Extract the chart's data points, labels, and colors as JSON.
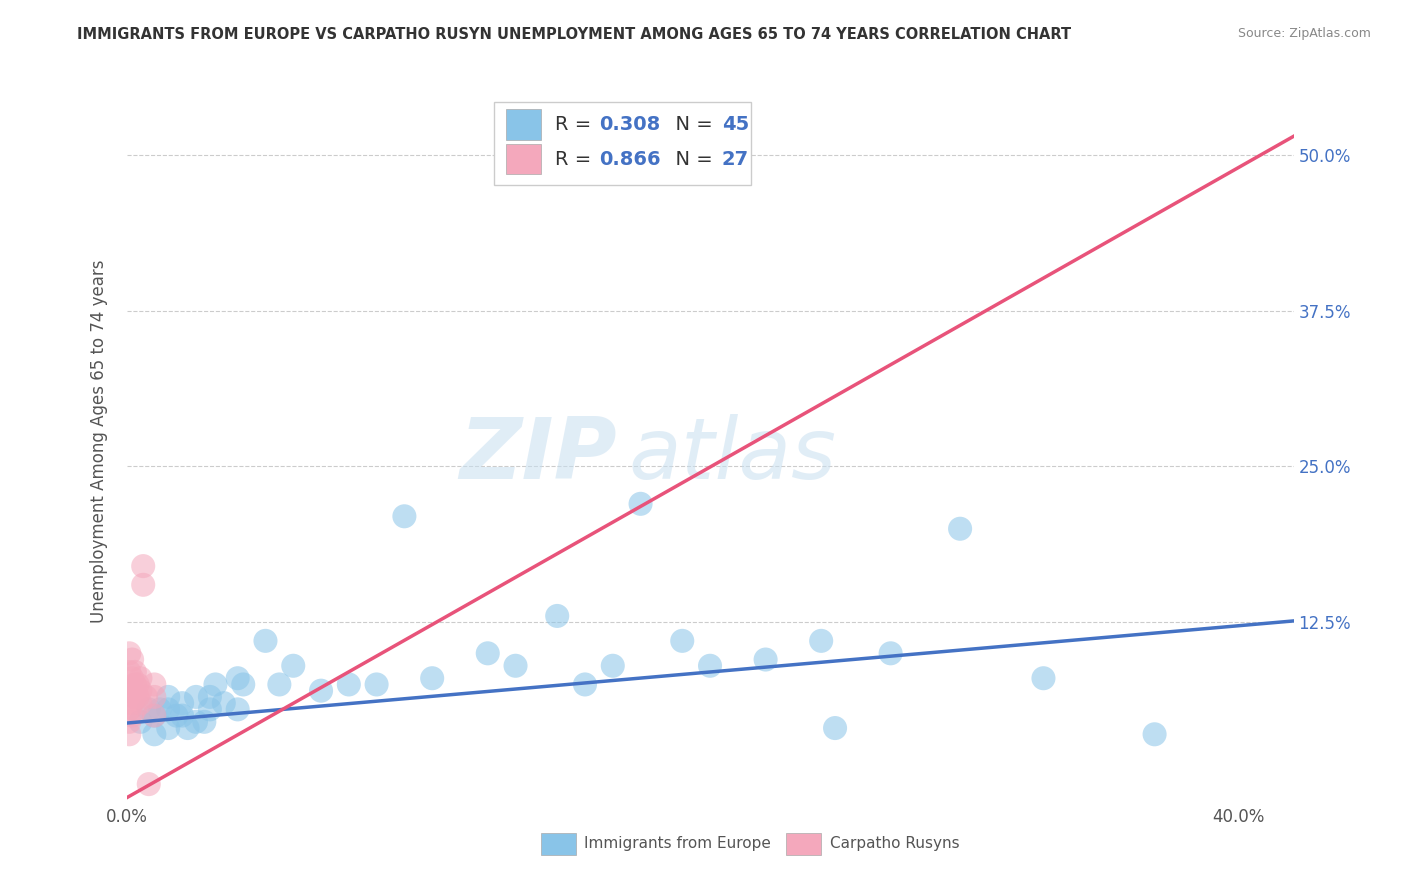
{
  "title": "IMMIGRANTS FROM EUROPE VS CARPATHO RUSYN UNEMPLOYMENT AMONG AGES 65 TO 74 YEARS CORRELATION CHART",
  "source": "Source: ZipAtlas.com",
  "ylabel": "Unemployment Among Ages 65 to 74 years",
  "xlim": [
    0.0,
    0.42
  ],
  "ylim": [
    -0.02,
    0.56
  ],
  "xticks": [
    0.0,
    0.05,
    0.1,
    0.15,
    0.2,
    0.25,
    0.3,
    0.35,
    0.4
  ],
  "xtick_labels": [
    "0.0%",
    "",
    "",
    "",
    "",
    "",
    "",
    "",
    "40.0%"
  ],
  "ytick_vals_right": [
    0.125,
    0.25,
    0.375,
    0.5
  ],
  "ytick_labels_right": [
    "12.5%",
    "25.0%",
    "37.5%",
    "50.0%"
  ],
  "grid_color": "#cccccc",
  "watermark_zip": "ZIP",
  "watermark_atlas": "atlas",
  "blue_color": "#89C4E8",
  "pink_color": "#F4A8BC",
  "blue_line_color": "#4472C4",
  "pink_line_color": "#E8537A",
  "legend_blue_series": "Immigrants from Europe",
  "legend_pink_series": "Carpatho Rusyns",
  "blue_scatter_x": [
    0.005,
    0.008,
    0.01,
    0.01,
    0.012,
    0.015,
    0.015,
    0.015,
    0.018,
    0.02,
    0.02,
    0.022,
    0.025,
    0.025,
    0.028,
    0.03,
    0.03,
    0.032,
    0.035,
    0.04,
    0.04,
    0.042,
    0.05,
    0.055,
    0.06,
    0.07,
    0.08,
    0.09,
    0.1,
    0.11,
    0.13,
    0.14,
    0.155,
    0.165,
    0.175,
    0.185,
    0.2,
    0.21,
    0.23,
    0.25,
    0.255,
    0.275,
    0.3,
    0.33,
    0.37
  ],
  "blue_scatter_y": [
    0.045,
    0.055,
    0.035,
    0.05,
    0.055,
    0.04,
    0.055,
    0.065,
    0.05,
    0.05,
    0.06,
    0.04,
    0.045,
    0.065,
    0.045,
    0.055,
    0.065,
    0.075,
    0.06,
    0.055,
    0.08,
    0.075,
    0.11,
    0.075,
    0.09,
    0.07,
    0.075,
    0.075,
    0.21,
    0.08,
    0.1,
    0.09,
    0.13,
    0.075,
    0.09,
    0.22,
    0.11,
    0.09,
    0.095,
    0.11,
    0.04,
    0.1,
    0.2,
    0.08,
    0.035
  ],
  "pink_scatter_x": [
    0.001,
    0.001,
    0.001,
    0.001,
    0.001,
    0.001,
    0.002,
    0.002,
    0.002,
    0.002,
    0.002,
    0.003,
    0.003,
    0.003,
    0.003,
    0.004,
    0.004,
    0.005,
    0.005,
    0.005,
    0.006,
    0.006,
    0.007,
    0.008,
    0.01,
    0.01,
    0.01
  ],
  "pink_scatter_y": [
    0.035,
    0.045,
    0.055,
    0.07,
    0.085,
    0.1,
    0.05,
    0.06,
    0.07,
    0.08,
    0.095,
    0.055,
    0.065,
    0.075,
    0.085,
    0.065,
    0.075,
    0.06,
    0.07,
    0.08,
    0.155,
    0.17,
    0.065,
    -0.005,
    0.05,
    0.065,
    0.075
  ],
  "blue_line_x": [
    0.0,
    0.42
  ],
  "blue_line_y": [
    0.044,
    0.126
  ],
  "pink_line_x": [
    0.0,
    0.42
  ],
  "pink_line_y": [
    -0.016,
    0.515
  ]
}
